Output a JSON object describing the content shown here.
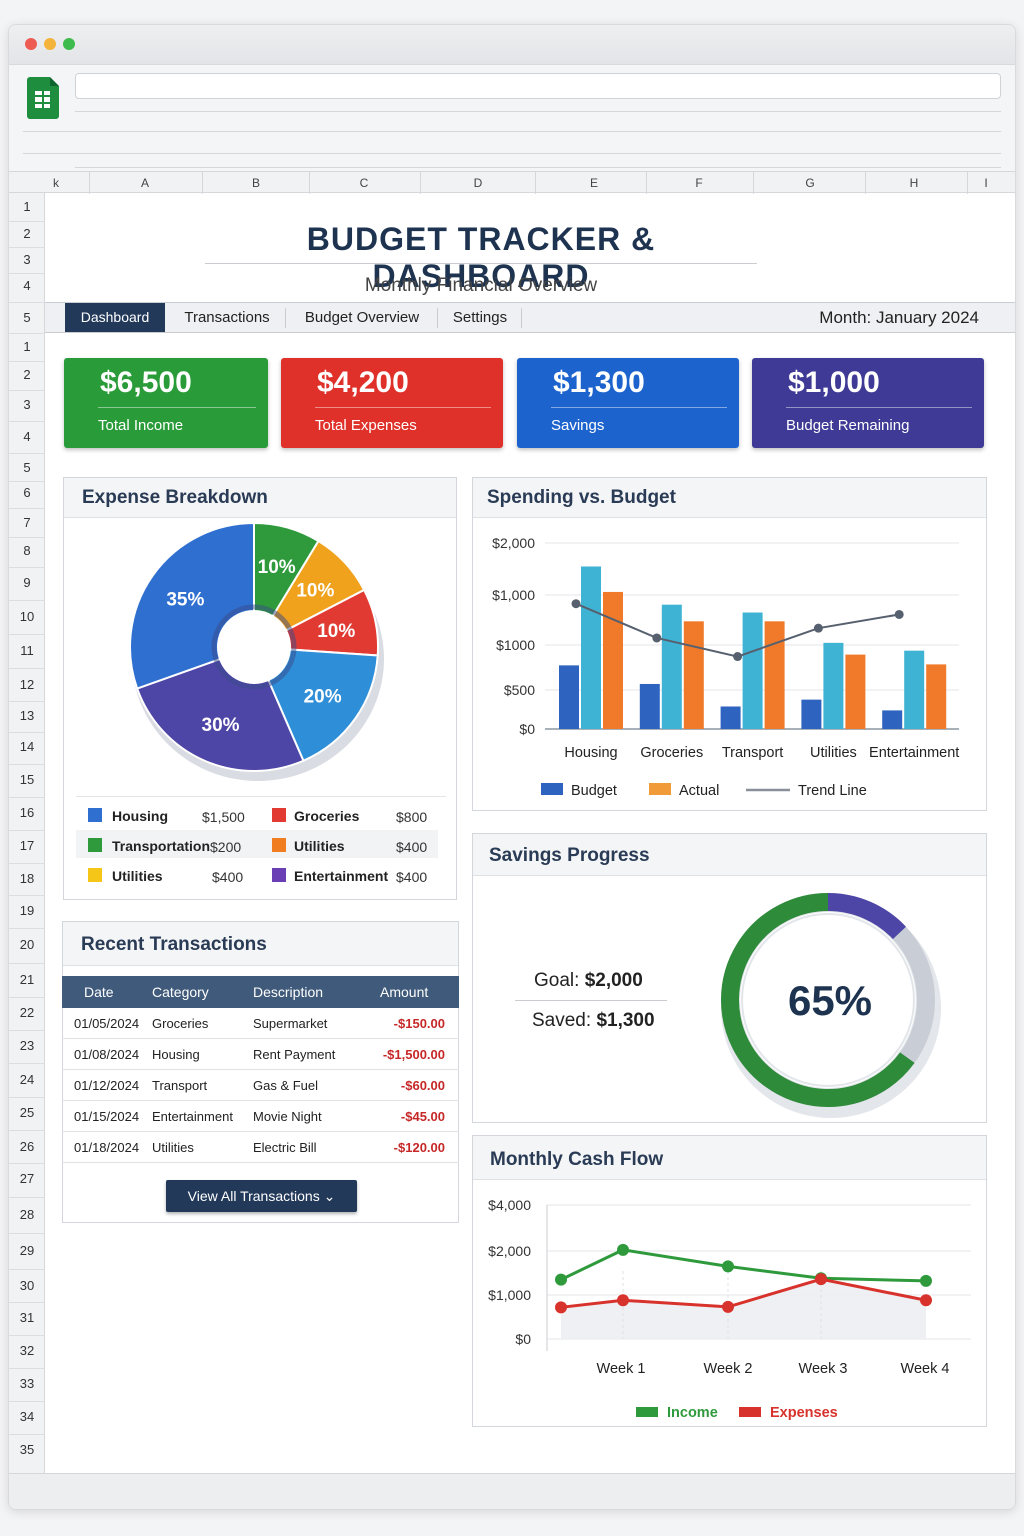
{
  "sheet": {
    "columns": [
      "k",
      "A",
      "B",
      "C",
      "D",
      "E",
      "F",
      "G",
      "H",
      "I"
    ],
    "rows": [
      "1",
      "2",
      "3",
      "4",
      "5",
      "1",
      "2",
      "3",
      "4",
      "5",
      "6",
      "7",
      "8",
      "9",
      "10",
      "11",
      "12",
      "13",
      "14",
      "15",
      "16",
      "17",
      "18",
      "19",
      "20",
      "21",
      "22",
      "23",
      "24",
      "25",
      "26",
      "27",
      "28",
      "29",
      "30",
      "31",
      "32",
      "33",
      "34",
      "35"
    ]
  },
  "header": {
    "title": "BUDGET TRACKER & DASHBOARD",
    "subtitle": "Monthly Financial Overview",
    "month": "Month: January 2024"
  },
  "tabs": [
    {
      "label": "Dashboard",
      "active": true
    },
    {
      "label": "Transactions",
      "active": false
    },
    {
      "label": "Budget Overview",
      "active": false
    },
    {
      "label": "Settings",
      "active": false
    }
  ],
  "kpis": [
    {
      "value": "$6,500",
      "label": "Total Income",
      "color": "#2e9a3c"
    },
    {
      "value": "$4,200",
      "label": "Total Expenses",
      "color": "#d8322c"
    },
    {
      "value": "$1,300",
      "label": "Savings",
      "color": "#1f63c9"
    },
    {
      "value": "$1,000",
      "label": "Budget Remaining",
      "color": "#3e3a91"
    }
  ],
  "expense_breakdown": {
    "title": "Expense Breakdown",
    "slices": [
      {
        "label": "10%",
        "value": 10,
        "color": "#2e9a3c"
      },
      {
        "label": "10%",
        "value": 10,
        "color": "#f0a21d"
      },
      {
        "label": "10%",
        "value": 10,
        "color": "#e03a33"
      },
      {
        "label": "20%",
        "value": 20,
        "color": "#2f8ed8"
      },
      {
        "label": "30%",
        "value": 30,
        "color": "#4e46a6"
      },
      {
        "label": "35%",
        "value": 35,
        "color": "#2f6fd0"
      }
    ],
    "legend": [
      {
        "name": "Housing",
        "value": "$1,500",
        "color": "#2f6fd0"
      },
      {
        "name": "Groceries",
        "value": "$800",
        "color": "#e03a33"
      },
      {
        "name": "Transportation",
        "value": "$200",
        "color": "#2e9a3c"
      },
      {
        "name": "Utilities",
        "value": "$400",
        "color": "#f07d1f"
      },
      {
        "name": "Utilities",
        "value": "$400",
        "color": "#f5c518"
      },
      {
        "name": "Entertainment",
        "value": "$400",
        "color": "#6a3fb5"
      }
    ]
  },
  "spending_vs_budget": {
    "title": "Spending vs. Budget",
    "chart_data": {
      "type": "bar",
      "categories": [
        "Housing",
        "Groceries",
        "Transport",
        "Utilities",
        "Entertainment"
      ],
      "y_tick_labels": [
        "$2,000",
        "$1,000",
        "$1000",
        "$500",
        "$0"
      ],
      "series": [
        {
          "name": "Budget",
          "values": [
            650,
            460,
            230,
            300,
            190
          ],
          "color": "#2f63c0"
        },
        {
          "name": "",
          "values": [
            1660,
            1270,
            1190,
            880,
            800
          ],
          "color": "#3fb3d4"
        },
        {
          "name": "Actual",
          "values": [
            1400,
            1100,
            1100,
            760,
            660
          ],
          "color": "#f07a2a"
        }
      ],
      "trend": {
        "name": "Trend Line",
        "values": [
          1280,
          930,
          740,
          1030,
          1170
        ],
        "color": "#56606e"
      },
      "ylim": [
        0,
        1900
      ]
    },
    "legend": [
      {
        "name": "Budget",
        "color": "#2f63c0",
        "kind": "box"
      },
      {
        "name": "Actual",
        "color": "#f09a3a",
        "kind": "box"
      },
      {
        "name": "Trend Line",
        "color": "#8a9099",
        "kind": "line"
      }
    ]
  },
  "recent_transactions": {
    "title": "Recent Transactions",
    "columns": [
      "Date",
      "Category",
      "Description",
      "Amount"
    ],
    "rows": [
      {
        "date": "01/05/2024",
        "category": "Groceries",
        "description": "Supermarket",
        "amount": "-$150.00"
      },
      {
        "date": "01/08/2024",
        "category": "Housing",
        "description": "Rent Payment",
        "amount": "-$1,500.00"
      },
      {
        "date": "01/12/2024",
        "category": "Transport",
        "description": "Gas & Fuel",
        "amount": "-$60.00"
      },
      {
        "date": "01/15/2024",
        "category": "Entertainment",
        "description": "Movie Night",
        "amount": "-$45.00"
      },
      {
        "date": "01/18/2024",
        "category": "Utilities",
        "description": "Electric Bill",
        "amount": "-$120.00"
      }
    ],
    "view_all": "View All Transactions ⌄"
  },
  "savings_progress": {
    "title": "Savings Progress",
    "goal_label": "Goal:",
    "goal_value": "$2,000",
    "saved_label": "Saved:",
    "saved_value": "$1,300",
    "percent_label": "65%",
    "percent": 65,
    "colors": {
      "progress": "#2e8b3a",
      "accent": "#4e46a6",
      "track": "#c9ced6"
    }
  },
  "cash_flow": {
    "title": "Monthly Cash Flow",
    "chart_data": {
      "type": "line",
      "x": [
        "",
        "Week 1",
        "",
        "Week 2",
        "",
        "Week 3",
        "",
        "Week 4"
      ],
      "x_tick_labels": [
        "Week 1",
        "Week 2",
        "Week 3",
        "Week 4"
      ],
      "y_tick_labels": [
        "$4,000",
        "$2,000",
        "$1,000",
        "$0"
      ],
      "series": [
        {
          "name": "Income",
          "values": [
            1350,
            2050,
            null,
            1650,
            null,
            1380,
            null,
            1320
          ],
          "color": "#2e9a3c"
        },
        {
          "name": "Expenses",
          "values": [
            720,
            880,
            null,
            730,
            null,
            1360,
            null,
            880
          ],
          "color": "#d8322c"
        }
      ]
    }
  }
}
